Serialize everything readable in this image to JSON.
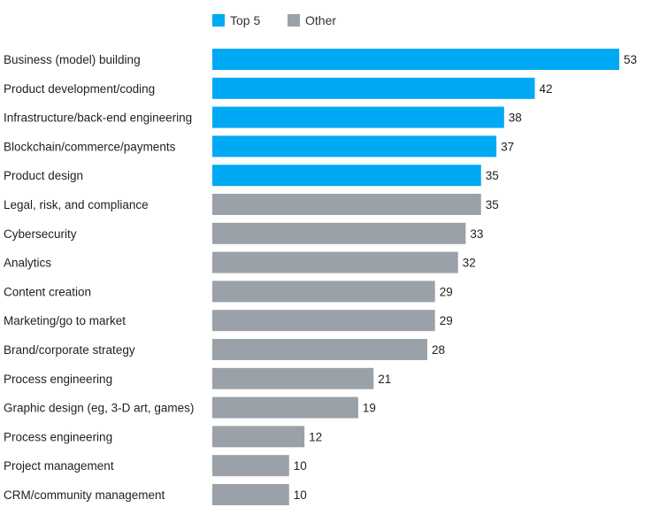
{
  "chart_data": {
    "type": "bar",
    "orientation": "horizontal",
    "legend": [
      {
        "name": "Top 5",
        "color": "#00a9f4"
      },
      {
        "name": "Other",
        "color": "#9aa1a9"
      }
    ],
    "categories": [
      "Business (model) building",
      "Product development/coding",
      "Infrastructure/back-end engineering",
      "Blockchain/commerce/payments",
      "Product design",
      "Legal, risk, and compliance",
      "Cybersecurity",
      "Analytics",
      "Content creation",
      "Marketing/go to market",
      "Brand/corporate strategy",
      "Process engineering",
      "Graphic design (eg, 3-D art, games)",
      "Process engineering",
      "Project management",
      "CRM/community management"
    ],
    "values": [
      53,
      42,
      38,
      37,
      35,
      35,
      33,
      32,
      29,
      29,
      28,
      21,
      19,
      12,
      10,
      10
    ],
    "groups": [
      "Top 5",
      "Top 5",
      "Top 5",
      "Top 5",
      "Top 5",
      "Other",
      "Other",
      "Other",
      "Other",
      "Other",
      "Other",
      "Other",
      "Other",
      "Other",
      "Other",
      "Other"
    ],
    "xlim": [
      0,
      53
    ]
  }
}
